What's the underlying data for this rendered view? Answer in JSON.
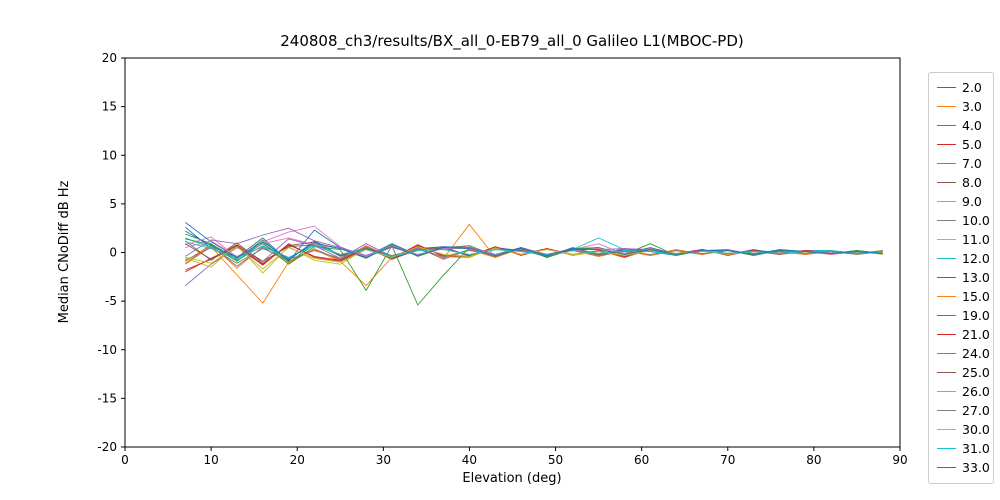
{
  "chart_data": {
    "type": "line",
    "title": "240808_ch3/results/BX_all_0-EB79_all_0 Galileo L1(MBOC-PD)",
    "xlabel": "Elevation (deg)",
    "ylabel": "Median CNoDiff dB Hz",
    "xlim": [
      0,
      90
    ],
    "ylim": [
      -20,
      20
    ],
    "x_ticks": [
      0,
      10,
      20,
      30,
      40,
      50,
      60,
      70,
      80,
      90
    ],
    "y_ticks": [
      -20,
      -15,
      -10,
      -5,
      0,
      5,
      10,
      15,
      20
    ],
    "grid": false,
    "legend_position": "right-outside",
    "x": [
      7,
      10,
      13,
      16,
      19,
      22,
      25,
      28,
      31,
      34,
      37,
      40,
      43,
      46,
      49,
      52,
      55,
      58,
      61,
      64,
      67,
      70,
      73,
      76,
      79,
      82,
      85,
      88
    ],
    "series": [
      {
        "name": "2.0",
        "color": "#1f77b4",
        "values": [
          2.6,
          0.4,
          -0.6,
          0.9,
          -0.8,
          1.2,
          -0.3,
          0.5,
          -0.6,
          0.4,
          0.6,
          -0.4,
          0.5,
          0.2,
          -0.4,
          0.5,
          -0.2,
          0.4,
          0.1,
          -0.3,
          0.3,
          -0.2,
          0.3,
          -0.1,
          0.2,
          0.2,
          -0.1,
          0.1
        ]
      },
      {
        "name": "3.0",
        "color": "#ff7f0e",
        "values": [
          -0.9,
          0.8,
          -1.6,
          0.6,
          -1.1,
          0.4,
          -0.8,
          0.7,
          -0.5,
          0.5,
          -0.6,
          2.9,
          -0.5,
          0.5,
          -0.3,
          0.3,
          -0.4,
          0.2,
          -0.3,
          0.3,
          -0.2,
          0.3,
          -0.2,
          0.2,
          -0.2,
          0.1,
          -0.2,
          0.1
        ]
      },
      {
        "name": "4.0",
        "color": "#2ca02c",
        "values": [
          1.9,
          0.9,
          -0.7,
          1.3,
          -1.0,
          0.8,
          0.4,
          -0.6,
          0.8,
          -0.4,
          0.5,
          0.7,
          -0.3,
          0.5,
          -0.5,
          0.4,
          0.5,
          -0.2,
          0.4,
          -0.3,
          0.2,
          0.3,
          -0.3,
          0.2,
          0.1,
          -0.2,
          0.2,
          -0.1
        ]
      },
      {
        "name": "5.0",
        "color": "#d62728",
        "values": [
          -1.8,
          -0.7,
          0.6,
          -1.3,
          0.9,
          -0.5,
          -0.9,
          0.4,
          -0.6,
          0.8,
          -0.4,
          -0.5,
          0.6,
          -0.3,
          0.4,
          -0.3,
          0.2,
          -0.5,
          0.3,
          -0.2,
          0.3,
          -0.3,
          0.2,
          -0.1,
          0.2,
          -0.2,
          0.1,
          -0.1
        ]
      },
      {
        "name": "7.0",
        "color": "#9467bd",
        "values": [
          -3.4,
          -1.2,
          0.5,
          -0.9,
          1.4,
          0.7,
          -0.6,
          0.9,
          -0.4,
          0.5,
          -0.7,
          0.3,
          -0.5,
          0.5,
          -0.2,
          0.4,
          -0.4,
          0.2,
          -0.3,
          0.2,
          -0.2,
          0.3,
          -0.2,
          0.1,
          -0.2,
          0.2,
          -0.1,
          0.1
        ]
      },
      {
        "name": "8.0",
        "color": "#8c564b",
        "values": [
          1.2,
          -0.8,
          1.0,
          -1.1,
          0.7,
          1.1,
          -0.4,
          0.5,
          -0.7,
          0.3,
          0.6,
          -0.4,
          0.4,
          0.2,
          -0.3,
          0.4,
          -0.2,
          0.3,
          0.2,
          -0.2,
          0.3,
          -0.1,
          0.2,
          -0.2,
          0.2,
          0.1,
          -0.1,
          0.2
        ]
      },
      {
        "name": "9.0",
        "color": "#e377c2",
        "values": [
          0.8,
          1.6,
          -0.5,
          1.1,
          2.1,
          2.7,
          0.6,
          -0.5,
          0.7,
          -0.3,
          0.5,
          0.6,
          -0.3,
          0.4,
          -0.4,
          0.3,
          0.9,
          -0.2,
          0.4,
          -0.2,
          0.2,
          0.2,
          -0.3,
          0.2,
          0.1,
          -0.2,
          0.1,
          -0.1
        ]
      },
      {
        "name": "10.0",
        "color": "#7f7f7f",
        "values": [
          -1.1,
          0.7,
          -1.4,
          0.5,
          -0.9,
          0.3,
          -0.7,
          0.6,
          -0.4,
          0.4,
          -0.5,
          0.3,
          -0.4,
          0.4,
          -0.2,
          0.3,
          -0.3,
          0.2,
          -0.3,
          0.2,
          -0.2,
          0.2,
          -0.2,
          0.1,
          -0.1,
          0.1,
          -0.2,
          0.1
        ]
      },
      {
        "name": "11.0",
        "color": "#bcbd22",
        "values": [
          -0.6,
          -1.5,
          0.8,
          -2.1,
          0.6,
          -0.8,
          -1.2,
          0.4,
          -0.6,
          0.7,
          -0.3,
          -0.5,
          0.5,
          -0.2,
          0.4,
          -0.3,
          0.1,
          -0.4,
          0.2,
          -0.2,
          0.3,
          -0.2,
          0.1,
          -0.1,
          0.2,
          -0.1,
          0.1,
          -0.2
        ]
      },
      {
        "name": "12.0",
        "color": "#17becf",
        "values": [
          1.5,
          0.5,
          -0.8,
          0.7,
          -0.6,
          0.9,
          -0.2,
          0.4,
          -0.5,
          0.3,
          0.4,
          -0.3,
          0.4,
          0.1,
          -0.3,
          0.3,
          1.5,
          0.3,
          0.1,
          -0.2,
          0.2,
          -0.1,
          0.2,
          -0.1,
          0.1,
          0.2,
          -0.1,
          0.1
        ]
      },
      {
        "name": "13.0",
        "color": "#1f77b4",
        "values": [
          3.1,
          1.1,
          -0.5,
          1.5,
          -0.9,
          2.3,
          0.5,
          -0.4,
          0.9,
          -0.3,
          0.6,
          0.5,
          -0.2,
          0.5,
          -0.4,
          0.4,
          0.4,
          -0.1,
          0.5,
          -0.2,
          0.2,
          0.2,
          -0.2,
          0.3,
          0.1,
          -0.1,
          0.2,
          -0.1
        ]
      },
      {
        "name": "15.0",
        "color": "#ff7f0e",
        "values": [
          -1.2,
          0.6,
          -2.3,
          -5.2,
          -1.0,
          0.3,
          -0.9,
          -3.4,
          -0.5,
          0.6,
          -0.6,
          0.3,
          -0.5,
          0.4,
          -0.3,
          0.2,
          -0.4,
          0.2,
          -0.3,
          0.3,
          -0.2,
          0.2,
          -0.2,
          0.1,
          -0.2,
          0.1,
          -0.1,
          0.1
        ]
      },
      {
        "name": "19.0",
        "color": "#2ca02c",
        "values": [
          1.4,
          0.8,
          -0.9,
          1.0,
          -1.2,
          0.6,
          0.3,
          -3.9,
          0.7,
          -5.4,
          -2.3,
          0.5,
          -0.4,
          0.4,
          -0.5,
          0.3,
          0.5,
          -0.2,
          0.9,
          -0.3,
          0.2,
          0.2,
          -0.3,
          0.2,
          0.1,
          -0.1,
          0.2,
          -0.1
        ]
      },
      {
        "name": "21.0",
        "color": "#d62728",
        "values": [
          -2.0,
          -0.6,
          0.7,
          -1.2,
          0.8,
          -0.4,
          -0.8,
          0.5,
          -0.5,
          0.7,
          -0.3,
          -0.4,
          0.6,
          -0.2,
          0.4,
          -0.2,
          0.2,
          -0.4,
          0.3,
          -0.1,
          0.3,
          -0.2,
          0.2,
          -0.1,
          0.2,
          -0.1,
          0.1,
          -0.1
        ]
      },
      {
        "name": "24.0",
        "color": "#9467bd",
        "values": [
          -0.4,
          1.3,
          0.9,
          1.8,
          2.5,
          1.2,
          0.5,
          -0.3,
          0.6,
          -0.2,
          0.4,
          0.5,
          -0.2,
          0.3,
          -0.3,
          0.3,
          0.3,
          0.4,
          0.3,
          -0.2,
          0.2,
          0.2,
          -0.2,
          0.1,
          0.1,
          -0.1,
          0.1,
          -0.1
        ]
      },
      {
        "name": "25.0",
        "color": "#8c564b",
        "values": [
          0.9,
          -0.7,
          0.8,
          -0.9,
          0.6,
          0.8,
          -0.3,
          0.4,
          -0.6,
          0.2,
          0.5,
          -0.3,
          0.3,
          0.2,
          -0.2,
          0.3,
          -0.2,
          0.2,
          0.2,
          -0.1,
          0.2,
          -0.1,
          0.1,
          -0.2,
          0.1,
          0.1,
          -0.1,
          0.1
        ]
      },
      {
        "name": "26.0",
        "color": "#e377c2",
        "values": [
          0.5,
          1.2,
          -0.4,
          0.9,
          1.5,
          0.8,
          0.4,
          -0.4,
          0.5,
          -0.2,
          0.4,
          0.4,
          -0.2,
          0.3,
          -0.3,
          0.2,
          0.4,
          -0.1,
          0.3,
          -0.2,
          0.1,
          0.2,
          -0.2,
          0.1,
          0.1,
          -0.1,
          0.1,
          -0.1
        ]
      },
      {
        "name": "27.0",
        "color": "#7f7f7f",
        "values": [
          -0.8,
          0.5,
          -1.1,
          0.4,
          -0.7,
          0.2,
          -0.6,
          0.5,
          -0.3,
          0.3,
          -0.4,
          0.2,
          -0.3,
          0.3,
          -0.2,
          0.2,
          -0.3,
          0.1,
          -0.2,
          0.2,
          -0.1,
          0.2,
          -0.1,
          0.1,
          -0.1,
          0.1,
          -0.1,
          0.1
        ]
      },
      {
        "name": "30.0",
        "color": "#bcbd22",
        "values": [
          -0.5,
          -1.1,
          0.6,
          -1.7,
          0.5,
          -0.6,
          -1.0,
          0.3,
          -0.5,
          0.6,
          -0.2,
          -0.4,
          0.4,
          -0.2,
          0.3,
          -0.2,
          0.1,
          -0.3,
          0.2,
          -0.1,
          0.2,
          -0.2,
          0.1,
          -0.1,
          0.1,
          -0.1,
          0.1,
          -0.1
        ]
      },
      {
        "name": "31.0",
        "color": "#17becf",
        "values": [
          1.1,
          0.4,
          -0.6,
          0.6,
          -0.5,
          0.7,
          -0.2,
          0.3,
          -0.4,
          0.2,
          0.3,
          -0.2,
          0.3,
          0.1,
          -0.2,
          0.2,
          -0.1,
          0.2,
          0.1,
          -0.2,
          0.2,
          -0.1,
          0.1,
          -0.1,
          0.1,
          0.1,
          -0.1,
          0.1
        ]
      },
      {
        "name": "33.0",
        "color": "#1f77b4",
        "values": [
          2.2,
          0.7,
          -0.5,
          1.1,
          -0.7,
          1.0,
          0.4,
          -0.5,
          0.6,
          -0.3,
          0.5,
          0.4,
          -0.3,
          0.4,
          -0.3,
          0.3,
          0.3,
          -0.2,
          0.3,
          -0.2,
          0.2,
          0.2,
          -0.2,
          0.2,
          0.1,
          -0.1,
          0.1,
          -0.1
        ]
      }
    ]
  }
}
